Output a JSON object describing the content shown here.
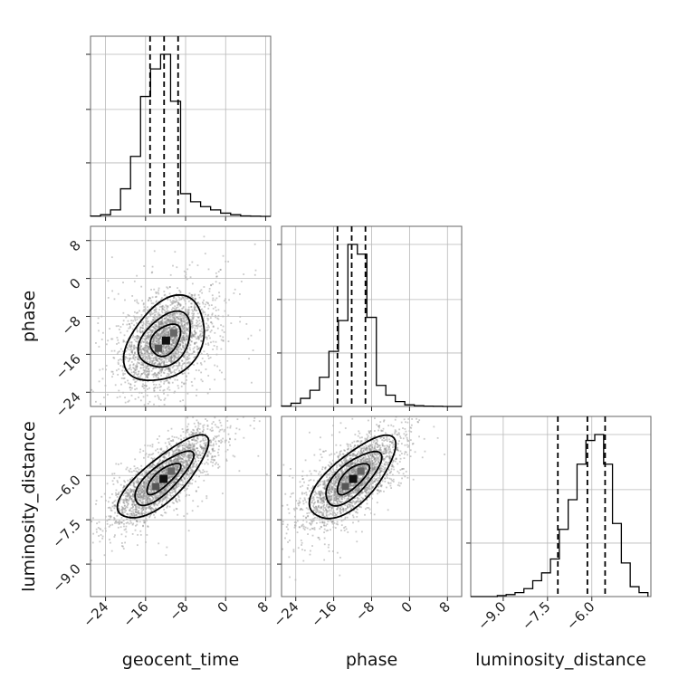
{
  "chart_data": {
    "type": "corner",
    "parameters": [
      "geocent_time",
      "phase",
      "luminosity_distance"
    ],
    "axis_labels": {
      "geocent_time": "geocent_time",
      "phase": "phase",
      "luminosity_distance": "luminosity_distance"
    },
    "ranges": {
      "geocent_time": [
        -27,
        9
      ],
      "phase": [
        -27,
        11
      ],
      "luminosity_distance": [
        -10.1,
        -4.0
      ]
    },
    "ticks": {
      "geocent_time": [
        {
          "v": -24,
          "label": "−24"
        },
        {
          "v": -16,
          "label": "−16"
        },
        {
          "v": -8,
          "label": "−8"
        },
        {
          "v": 0,
          "label": "0"
        },
        {
          "v": 8,
          "label": "8"
        }
      ],
      "phase": [
        {
          "v": -24,
          "label": "−24"
        },
        {
          "v": -16,
          "label": "−16"
        },
        {
          "v": -8,
          "label": "−8"
        },
        {
          "v": 0,
          "label": "0"
        },
        {
          "v": 8,
          "label": "8"
        }
      ],
      "luminosity_distance": [
        {
          "v": -9.0,
          "label": "−9.0"
        },
        {
          "v": -7.5,
          "label": "−7.5"
        },
        {
          "v": -6.0,
          "label": "−6.0"
        }
      ]
    },
    "histograms": {
      "geocent_time": {
        "bin_edges": [
          -27,
          -25,
          -23,
          -21,
          -19,
          -17,
          -15,
          -13,
          -11,
          -9,
          -7,
          -5,
          -3,
          -1,
          1,
          3,
          5,
          7,
          9
        ],
        "counts": [
          0.2,
          1,
          4,
          17,
          37,
          74,
          91,
          100,
          71,
          14,
          9,
          6,
          4,
          2,
          1,
          0.3,
          0.1,
          0
        ],
        "quantiles": [
          -15.1,
          -12.3,
          -9.5
        ]
      },
      "phase": {
        "bin_edges": [
          -27,
          -25,
          -23,
          -21,
          -19,
          -17,
          -15,
          -13,
          -11,
          -9,
          -7,
          -5,
          -3,
          -1,
          1,
          3,
          5,
          7,
          9,
          11
        ],
        "counts": [
          0.3,
          2,
          5,
          10,
          18,
          34,
          53,
          100,
          94,
          55,
          13,
          7,
          3,
          1,
          0.5,
          0.2,
          0.1,
          0,
          0
        ],
        "quantiles": [
          -15.2,
          -12.2,
          -9.3
        ]
      },
      "luminosity_distance": {
        "bin_edges": [
          -10.1,
          -9.8,
          -9.5,
          -9.2,
          -8.9,
          -8.6,
          -8.3,
          -8.0,
          -7.7,
          -7.4,
          -7.1,
          -6.8,
          -6.5,
          -6.2,
          -5.9,
          -5.6,
          -5.3,
          -5.0,
          -4.7,
          -4.4,
          -4.1
        ],
        "counts": [
          0,
          0,
          0,
          0.5,
          1,
          2,
          4,
          8,
          12,
          19,
          34,
          49,
          67,
          79,
          82,
          67,
          37,
          17,
          5,
          2
        ],
        "quantiles": [
          -7.15,
          -6.15,
          -5.55
        ]
      }
    },
    "pairs": [
      {
        "x": "geocent_time",
        "y": "phase",
        "center": [
          -12,
          -13
        ],
        "sigma": [
          4,
          4.5
        ],
        "rho": 0.35
      },
      {
        "x": "geocent_time",
        "y": "luminosity_distance",
        "center": [
          -12.5,
          -6.1
        ],
        "sigma": [
          4.5,
          0.7
        ],
        "rho": 0.78
      },
      {
        "x": "phase",
        "y": "luminosity_distance",
        "center": [
          -12,
          -6.1
        ],
        "sigma": [
          4.5,
          0.7
        ],
        "rho": 0.7
      }
    ],
    "grid": true
  }
}
